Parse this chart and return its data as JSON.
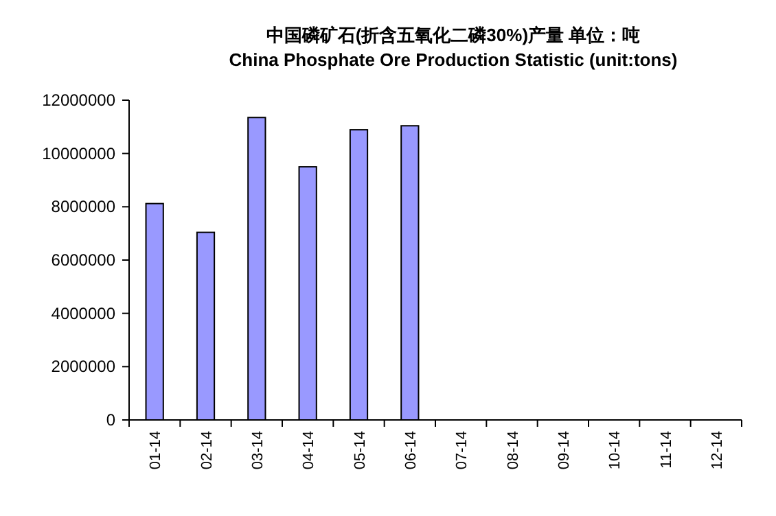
{
  "chart_data": {
    "type": "bar",
    "title": "中国磷矿石(折含五氧化二磷30%)产量 单位：吨",
    "subtitle": "China Phosphate Ore Production Statistic (unit:tons)",
    "categories": [
      "01-14",
      "02-14",
      "03-14",
      "04-14",
      "05-14",
      "06-14",
      "07-14",
      "08-14",
      "09-14",
      "10-14",
      "11-14",
      "12-14"
    ],
    "values": [
      8120000,
      7040000,
      11350000,
      9500000,
      10890000,
      11040000,
      null,
      null,
      null,
      null,
      null,
      null
    ],
    "color": "#9999ff",
    "ylim": [
      0,
      12000000
    ],
    "yticks": [
      0,
      2000000,
      4000000,
      6000000,
      8000000,
      10000000,
      12000000
    ],
    "grid": false
  }
}
